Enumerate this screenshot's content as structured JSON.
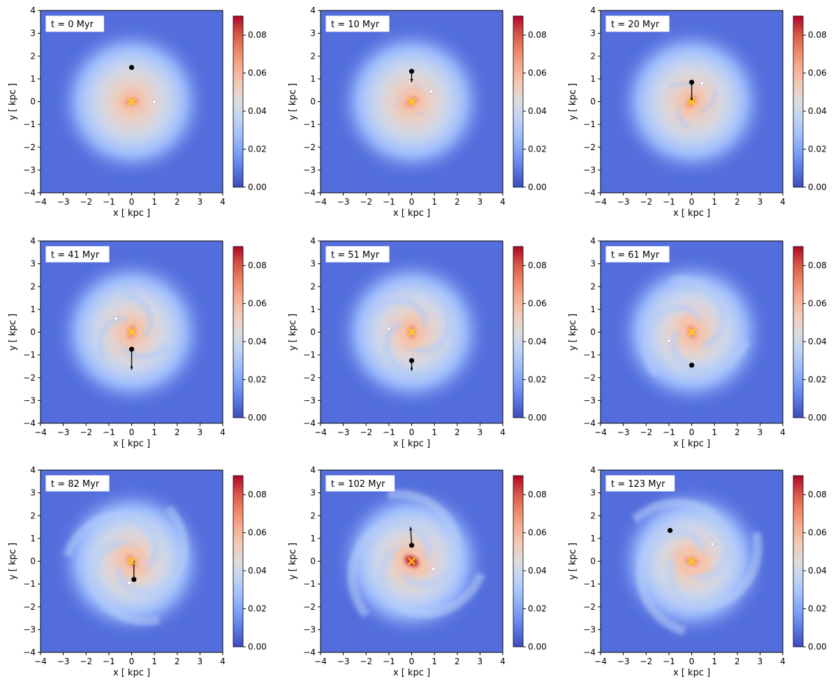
{
  "chart_data": {
    "type": "heatmap",
    "description": "Grid of 9 projected density maps with colorbars",
    "xlabel": "x [ kpc ]",
    "ylabel": "y [ kpc ]",
    "xlim": [
      -4,
      4
    ],
    "ylim": [
      -4,
      4
    ],
    "ticks": [
      -4,
      -3,
      -2,
      -1,
      0,
      1,
      2,
      3,
      4
    ],
    "colorbar": {
      "range": [
        0.0,
        0.09
      ],
      "ticks": [
        "0.00",
        "0.02",
        "0.04",
        "0.06",
        "0.08"
      ],
      "colormap": "coolwarm",
      "colors": [
        "#3b4cc0",
        "#5977e3",
        "#7b9ff9",
        "#9ebeff",
        "#c0d4f5",
        "#dddcdc",
        "#f2cbb7",
        "#f7ac8e",
        "#ee8468",
        "#d65244",
        "#b40426"
      ]
    },
    "marker_colors": {
      "center": "#ffd400",
      "black": "#000000",
      "white": "#ffffff"
    },
    "panels": [
      {
        "label": "t = 0 Myr",
        "center": [
          0,
          0
        ],
        "black_point": [
          0.0,
          1.5
        ],
        "black_vel": null,
        "white_point": [
          1.0,
          0.0
        ],
        "spiral": 0.0
      },
      {
        "label": "t = 10 Myr",
        "center": [
          0,
          0
        ],
        "black_point": [
          0.0,
          1.33
        ],
        "black_vel": [
          0.0,
          0.85
        ],
        "white_point": [
          0.85,
          0.45
        ],
        "spiral": 0.1
      },
      {
        "label": "t = 20 Myr",
        "center": [
          0,
          0
        ],
        "black_point": [
          0.0,
          0.85
        ],
        "black_vel": [
          0.0,
          0.0
        ],
        "white_point": [
          0.45,
          0.8
        ],
        "spiral": 0.25
      },
      {
        "label": "t = 41 Myr",
        "center": [
          0,
          0
        ],
        "black_point": [
          0.0,
          -0.75
        ],
        "black_vel": [
          0.0,
          -1.65
        ],
        "white_point": [
          -0.7,
          0.6
        ],
        "spiral": 0.45
      },
      {
        "label": "t = 51 Myr",
        "center": [
          0,
          0
        ],
        "black_point": [
          0.0,
          -1.25
        ],
        "black_vel": [
          0.0,
          -1.7
        ],
        "white_point": [
          -1.0,
          0.15
        ],
        "spiral": 0.6
      },
      {
        "label": "t = 61 Myr",
        "center": [
          0,
          0
        ],
        "black_point": [
          0.0,
          -1.45
        ],
        "black_vel": null,
        "white_point": [
          -1.0,
          -0.38
        ],
        "spiral": 0.75
      },
      {
        "label": "t = 82 Myr",
        "center": [
          0,
          0
        ],
        "black_point": [
          0.1,
          -0.8
        ],
        "black_vel": [
          0.1,
          0.0
        ],
        "white_point": [
          -0.1,
          -0.95
        ],
        "spiral": 0.9
      },
      {
        "label": "t = 102 Myr",
        "center": [
          0,
          0
        ],
        "black_point": [
          0.0,
          0.7
        ],
        "black_vel": [
          -0.05,
          1.5
        ],
        "white_point": [
          0.95,
          -0.35
        ],
        "spiral": 1.0
      },
      {
        "label": "t = 123 Myr",
        "center": [
          0,
          0
        ],
        "black_point": [
          -0.95,
          1.35
        ],
        "black_vel": null,
        "white_point": [
          0.9,
          0.75
        ],
        "spiral": 1.0
      }
    ]
  }
}
